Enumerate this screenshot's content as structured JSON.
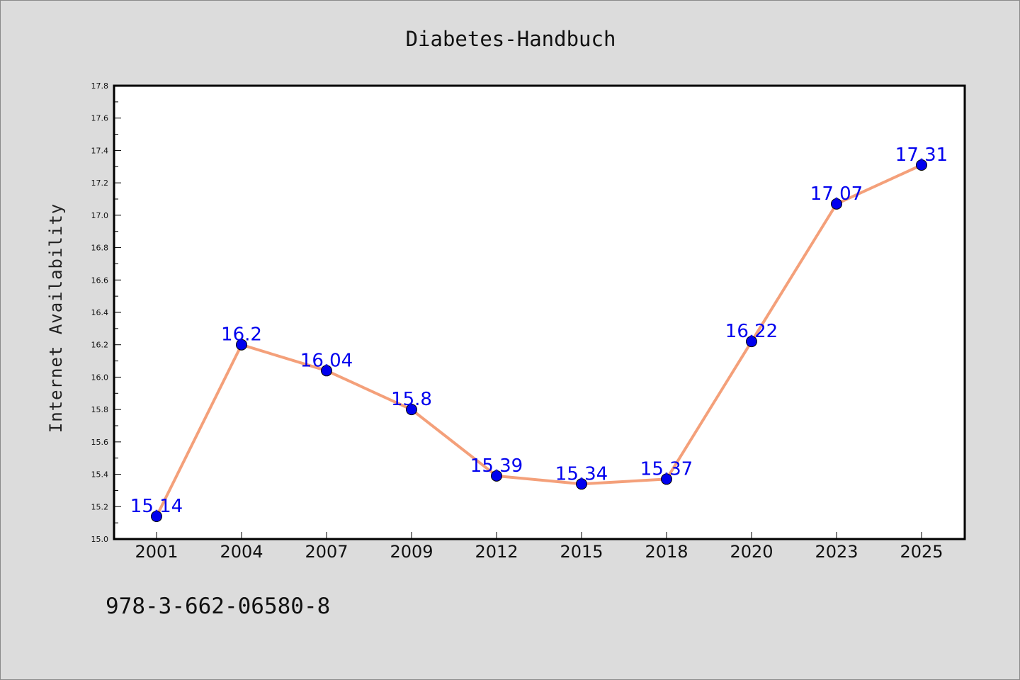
{
  "chart_data": {
    "type": "line",
    "title": "Diabetes-Handbuch",
    "xlabel": "",
    "ylabel": "Internet Availability",
    "categories": [
      "2001",
      "2004",
      "2007",
      "2009",
      "2012",
      "2015",
      "2018",
      "2020",
      "2023",
      "2025"
    ],
    "series": [
      {
        "values": [
          15.14,
          16.2,
          16.04,
          15.8,
          15.39,
          15.34,
          15.37,
          16.22,
          17.07,
          17.31
        ],
        "data_labels": [
          "15.14",
          "16.2",
          "16.04",
          "15.8",
          "15.39",
          "15.34",
          "15.37",
          "16.22",
          "17.07",
          "17.31"
        ],
        "line_color": "#f4a07a",
        "marker_color": "#0000ee"
      }
    ],
    "ylim": [
      15.0,
      17.8
    ],
    "yticks": [
      "15.0",
      "15.2",
      "15.4",
      "15.6",
      "15.8",
      "16.0",
      "16.2",
      "16.4",
      "16.6",
      "16.8",
      "17.0",
      "17.2",
      "17.4",
      "17.6",
      "17.8"
    ],
    "grid": false,
    "legend": "none"
  },
  "footer": {
    "isbn": "978-3-662-06580-8"
  },
  "colors": {
    "background": "#dcdcdc",
    "plot_background": "#ffffff",
    "axis": "#000000"
  }
}
